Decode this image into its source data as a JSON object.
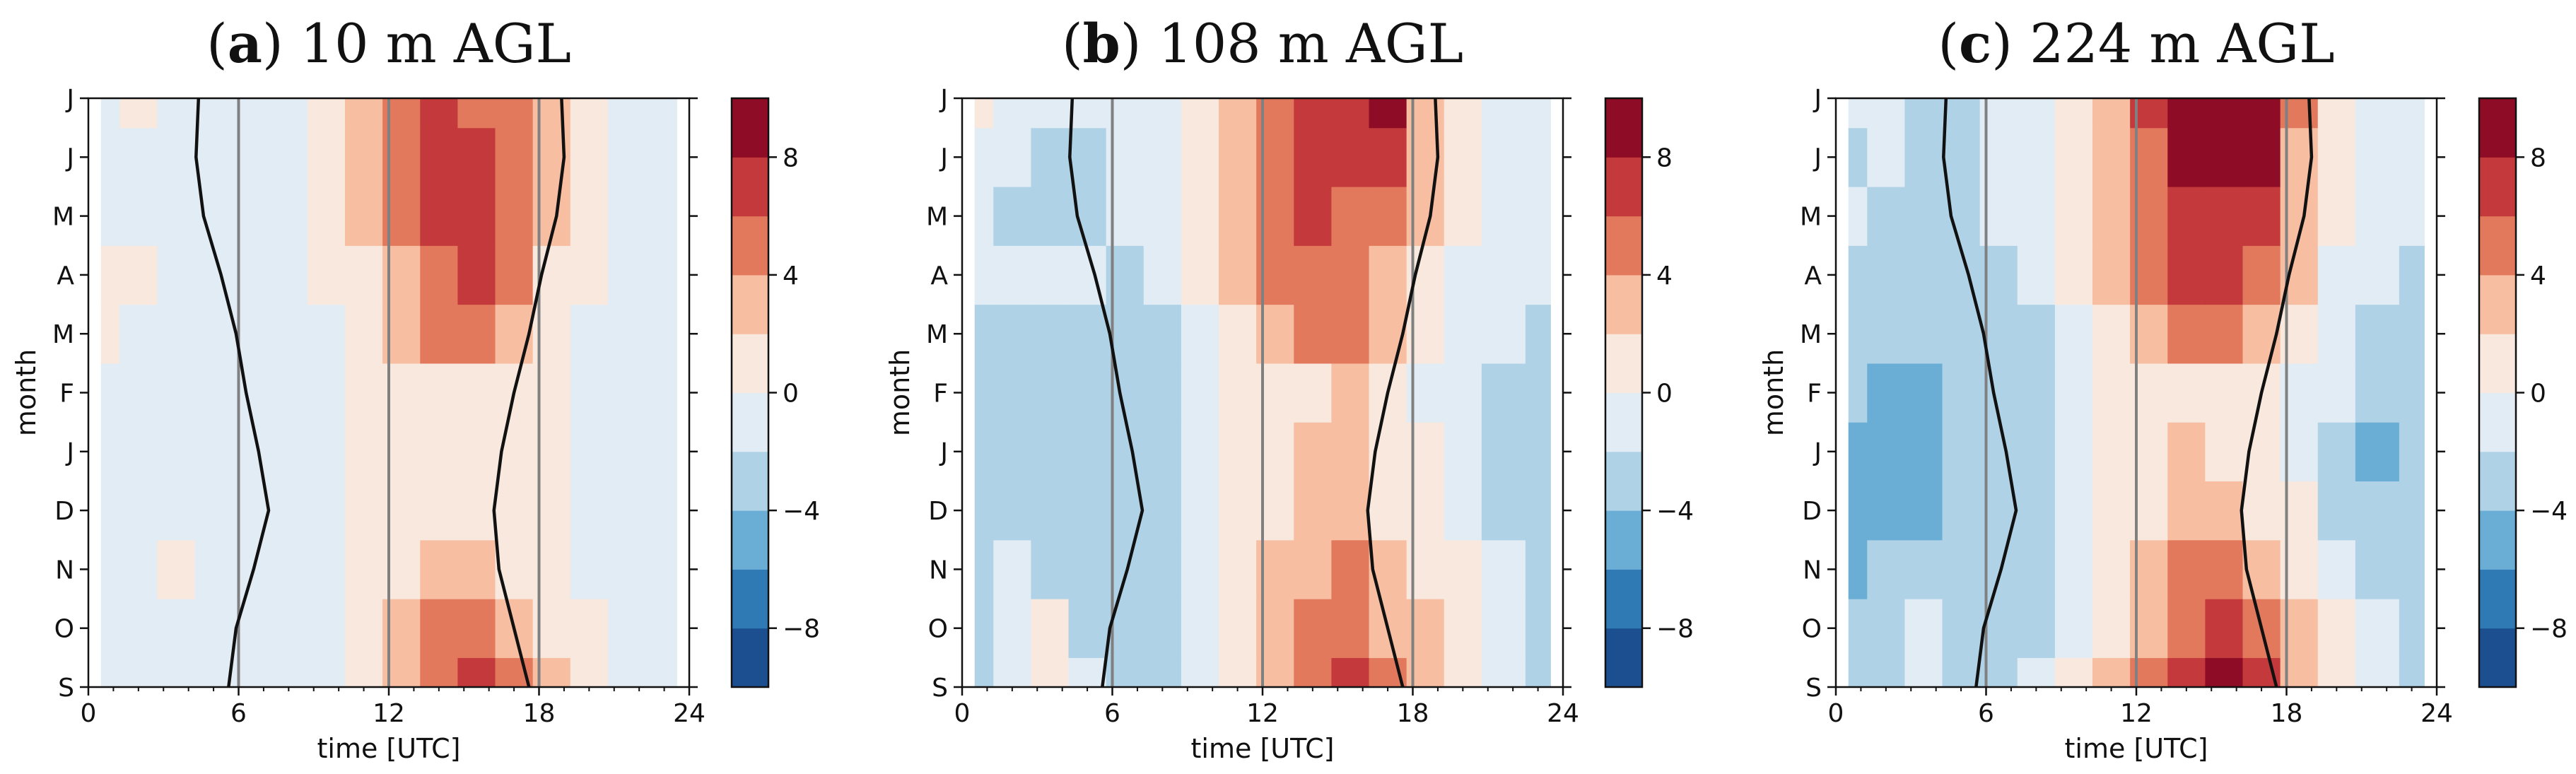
{
  "chart_data": {
    "type": "heatmap",
    "shared": {
      "xlabel": "time [UTC]",
      "ylabel": "month",
      "xlim": [
        0,
        24
      ],
      "xticks": [
        0,
        6,
        12,
        18,
        24
      ],
      "xtick_labels": [
        "0",
        "6",
        "12",
        "18",
        "24"
      ],
      "yticks_labels": [
        "S",
        "O",
        "N",
        "D",
        "J",
        "F",
        "M",
        "A",
        "M",
        "J",
        "J"
      ],
      "vertical_lines_utc": [
        6,
        12,
        18
      ],
      "colorbar": {
        "levels": [
          -10,
          -8,
          -6,
          -4,
          -2,
          0,
          2,
          4,
          6,
          8,
          10
        ],
        "colors": [
          "#1b4f8f",
          "#2f79b5",
          "#6aaed6",
          "#b0d2e7",
          "#e2ecf4",
          "#f9e8de",
          "#f7bea2",
          "#e2795d",
          "#c4393b",
          "#8e0c25"
        ],
        "tick_values": [
          -8,
          -4,
          0,
          4,
          8
        ],
        "tick_labels": [
          "−8",
          "−4",
          "0",
          "4",
          "8"
        ]
      }
    },
    "panels": [
      {
        "title_prefix": "(",
        "title_letter": "a",
        "title_rest": ") 10 m AGL",
        "columns_utc": [
          0.5,
          2,
          3.5,
          5,
          6.5,
          8,
          9.5,
          11,
          12.5,
          14,
          15.5,
          17,
          18.5,
          20,
          21.5,
          23.5
        ],
        "rows_month": [
          "S",
          "O",
          "N",
          "D",
          "J",
          "F",
          "M",
          "A",
          "M",
          "J",
          "J"
        ],
        "values": [
          [
            -1,
            -1,
            -1,
            -1,
            -1,
            -1,
            -1,
            1,
            3,
            5,
            7,
            5,
            3,
            1,
            -1,
            -1
          ],
          [
            -1,
            -1,
            -1,
            -1,
            -1,
            -1,
            -1,
            1,
            3,
            5,
            5,
            3,
            1,
            1,
            -1,
            -1
          ],
          [
            -1,
            -1,
            1,
            -1,
            -1,
            -1,
            -1,
            1,
            1,
            3,
            3,
            1,
            1,
            -1,
            -1,
            -1
          ],
          [
            -1,
            -1,
            -1,
            -1,
            -1,
            -1,
            -1,
            1,
            1,
            1,
            1,
            1,
            1,
            -1,
            -1,
            -1
          ],
          [
            -1,
            -1,
            -1,
            -1,
            -1,
            -1,
            -1,
            1,
            1,
            1,
            1,
            1,
            1,
            -1,
            -1,
            -1
          ],
          [
            -1,
            -1,
            -1,
            -1,
            -1,
            -1,
            -1,
            1,
            1,
            1,
            1,
            1,
            1,
            -1,
            -1,
            -1
          ],
          [
            1,
            -1,
            -1,
            -1,
            -1,
            -1,
            -1,
            1,
            3,
            5,
            5,
            3,
            1,
            -1,
            -1,
            -1
          ],
          [
            1,
            1,
            -1,
            -1,
            -1,
            -1,
            1,
            1,
            3,
            5,
            7,
            5,
            1,
            1,
            -1,
            -1
          ],
          [
            -1,
            -1,
            -1,
            -1,
            -1,
            -1,
            1,
            3,
            5,
            7,
            7,
            5,
            3,
            1,
            -1,
            -1
          ],
          [
            -1,
            -1,
            -1,
            -1,
            -1,
            -1,
            1,
            3,
            5,
            7,
            7,
            5,
            3,
            1,
            -1,
            -1
          ],
          [
            -1,
            1,
            -1,
            -1,
            -1,
            -1,
            1,
            3,
            5,
            7,
            5,
            5,
            3,
            1,
            -1,
            -1
          ]
        ],
        "sunrise_utc": [
          5.6,
          5.9,
          6.6,
          7.2,
          6.8,
          6.3,
          5.9,
          5.3,
          4.6,
          4.3,
          4.4
        ],
        "sunset_utc": [
          17.6,
          17.0,
          16.4,
          16.2,
          16.5,
          17.0,
          17.6,
          18.1,
          18.7,
          19.0,
          18.9
        ]
      },
      {
        "title_prefix": "(",
        "title_letter": "b",
        "title_rest": ") 108 m AGL",
        "columns_utc": [
          0.5,
          2,
          3.5,
          5,
          6.5,
          8,
          9.5,
          11,
          12.5,
          14,
          15.5,
          17,
          18.5,
          20,
          21.5,
          23.5
        ],
        "rows_month": [
          "S",
          "O",
          "N",
          "D",
          "J",
          "F",
          "M",
          "A",
          "M",
          "J",
          "J"
        ],
        "values": [
          [
            -3,
            -1,
            0,
            -1,
            -3,
            -3,
            -1,
            1,
            3,
            5,
            7,
            5,
            3,
            1,
            -1,
            -3
          ],
          [
            -3,
            -1,
            0,
            -3,
            -3,
            -3,
            -1,
            1,
            3,
            5,
            5,
            3,
            3,
            1,
            -1,
            -3
          ],
          [
            -3,
            -1,
            -3,
            -3,
            -3,
            -3,
            -1,
            1,
            3,
            3,
            5,
            3,
            1,
            1,
            -1,
            -3
          ],
          [
            -3,
            -3,
            -3,
            -3,
            -3,
            -3,
            -1,
            1,
            1,
            3,
            3,
            0,
            1,
            -1,
            -3,
            -3
          ],
          [
            -3,
            -3,
            -3,
            -3,
            -3,
            -3,
            -1,
            1,
            1,
            3,
            3,
            0,
            1,
            -1,
            -3,
            -3
          ],
          [
            -3,
            -3,
            -3,
            -3,
            -3,
            -3,
            -1,
            1,
            1,
            1,
            3,
            1,
            -1,
            -1,
            -3,
            -3
          ],
          [
            -3,
            -3,
            -3,
            -3,
            -3,
            -3,
            -1,
            1,
            3,
            5,
            5,
            3,
            1,
            -1,
            -1,
            -3
          ],
          [
            -1,
            -1,
            -1,
            -1,
            -3,
            -1,
            1,
            3,
            5,
            5,
            5,
            3,
            1,
            -1,
            -1,
            -1
          ],
          [
            -1,
            -3,
            -3,
            -3,
            -1,
            -1,
            1,
            3,
            5,
            7,
            5,
            5,
            3,
            1,
            -1,
            -1
          ],
          [
            -1,
            -1,
            -3,
            -3,
            -1,
            -1,
            1,
            3,
            5,
            7,
            7,
            7,
            3,
            1,
            -1,
            -1
          ],
          [
            0,
            -1,
            -1,
            -1,
            -1,
            -1,
            1,
            3,
            5,
            7,
            7,
            9,
            3,
            1,
            -1,
            -1
          ]
        ],
        "sunrise_utc": [
          5.6,
          5.9,
          6.6,
          7.2,
          6.8,
          6.3,
          5.9,
          5.3,
          4.6,
          4.3,
          4.4
        ],
        "sunset_utc": [
          17.6,
          17.0,
          16.4,
          16.2,
          16.5,
          17.0,
          17.6,
          18.1,
          18.7,
          19.0,
          18.9
        ]
      },
      {
        "title_prefix": "(",
        "title_letter": "c",
        "title_rest": ") 224 m AGL",
        "columns_utc": [
          0.5,
          2,
          3.5,
          5,
          6.5,
          8,
          9.5,
          11,
          12.5,
          14,
          15.5,
          17,
          18.5,
          20,
          21.5,
          23.5
        ],
        "rows_month": [
          "S",
          "O",
          "N",
          "D",
          "J",
          "F",
          "M",
          "A",
          "M",
          "J",
          "J"
        ],
        "values": [
          [
            -3,
            -3,
            -1,
            -3,
            -3,
            -1,
            1,
            3,
            5,
            7,
            9,
            7,
            3,
            1,
            -1,
            -3
          ],
          [
            -3,
            -3,
            -1,
            -3,
            -3,
            -3,
            -1,
            1,
            3,
            5,
            7,
            5,
            3,
            1,
            -1,
            -3
          ],
          [
            -5,
            -3,
            -3,
            -3,
            -3,
            -3,
            -1,
            1,
            3,
            5,
            5,
            3,
            1,
            -1,
            -3,
            -3
          ],
          [
            -5,
            -5,
            -5,
            -3,
            -3,
            -3,
            -1,
            1,
            1,
            3,
            3,
            1,
            1,
            -3,
            -3,
            -3
          ],
          [
            -5,
            -5,
            -5,
            -3,
            -3,
            -3,
            -1,
            1,
            1,
            3,
            1,
            1,
            -1,
            -3,
            -5,
            -3
          ],
          [
            -3,
            -5,
            -5,
            -3,
            -3,
            -3,
            -1,
            1,
            1,
            1,
            1,
            1,
            -1,
            -1,
            -3,
            -3
          ],
          [
            -3,
            -3,
            -3,
            -3,
            -3,
            -3,
            -1,
            1,
            3,
            5,
            5,
            3,
            1,
            -1,
            -3,
            -3
          ],
          [
            -3,
            -3,
            -3,
            -3,
            -3,
            -1,
            1,
            3,
            5,
            7,
            7,
            5,
            3,
            -1,
            -1,
            -3
          ],
          [
            -1,
            -3,
            -3,
            -3,
            -1,
            -1,
            1,
            3,
            5,
            7,
            7,
            7,
            3,
            1,
            -1,
            -1
          ],
          [
            -3,
            -1,
            -3,
            -3,
            -1,
            -1,
            1,
            3,
            5,
            9,
            9,
            9,
            3,
            1,
            -1,
            -1
          ],
          [
            -1,
            -1,
            -3,
            -3,
            -1,
            -1,
            1,
            3,
            7,
            9,
            9,
            9,
            5,
            1,
            -1,
            -1
          ]
        ],
        "sunrise_utc": [
          5.6,
          5.9,
          6.6,
          7.2,
          6.8,
          6.3,
          5.9,
          5.3,
          4.6,
          4.3,
          4.4
        ],
        "sunset_utc": [
          17.6,
          17.0,
          16.4,
          16.2,
          16.5,
          17.0,
          17.6,
          18.1,
          18.7,
          19.0,
          18.9
        ]
      }
    ]
  },
  "colors": {
    "sun_line": "#111111",
    "vertical_line": "#808080",
    "axis": "#111111",
    "background": "#ffffff"
  }
}
